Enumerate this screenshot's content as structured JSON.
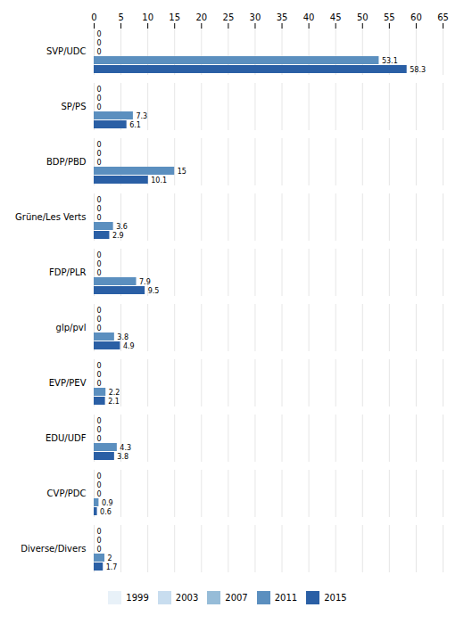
{
  "chart_data": {
    "type": "bar",
    "orientation": "horizontal",
    "categories": [
      "SVP/UDC",
      "SP/PS",
      "BDP/PBD",
      "Grüne/Les Verts",
      "FDP/PLR",
      "glp/pvl",
      "EVP/PEV",
      "EDU/UDF",
      "CVP/PDC",
      "Diverse/Divers"
    ],
    "series": [
      {
        "name": "1999",
        "color": "#e8f1f8",
        "values": [
          0,
          0,
          0,
          0,
          0,
          0,
          0,
          0,
          0,
          0
        ]
      },
      {
        "name": "2003",
        "color": "#c8ddef",
        "values": [
          0,
          0,
          0,
          0,
          0,
          0,
          0,
          0,
          0,
          0
        ]
      },
      {
        "name": "2007",
        "color": "#96bcd8",
        "values": [
          0,
          0,
          0,
          0,
          0,
          0,
          0,
          0,
          0,
          0
        ]
      },
      {
        "name": "2011",
        "color": "#5b8fbf",
        "values": [
          53.1,
          7.3,
          15.0,
          3.6,
          7.9,
          3.8,
          2.2,
          4.3,
          0.9,
          2.0
        ]
      },
      {
        "name": "2015",
        "color": "#2a5fa5",
        "values": [
          58.3,
          6.1,
          10.1,
          2.9,
          9.5,
          4.9,
          2.1,
          3.8,
          0.6,
          1.7
        ]
      }
    ],
    "xlim": [
      0,
      65
    ],
    "xticks": [
      0,
      5,
      10,
      15,
      20,
      25,
      30,
      35,
      40,
      45,
      50,
      55,
      60,
      65
    ],
    "grid": true,
    "data_labels": true,
    "legend": "bottom"
  }
}
